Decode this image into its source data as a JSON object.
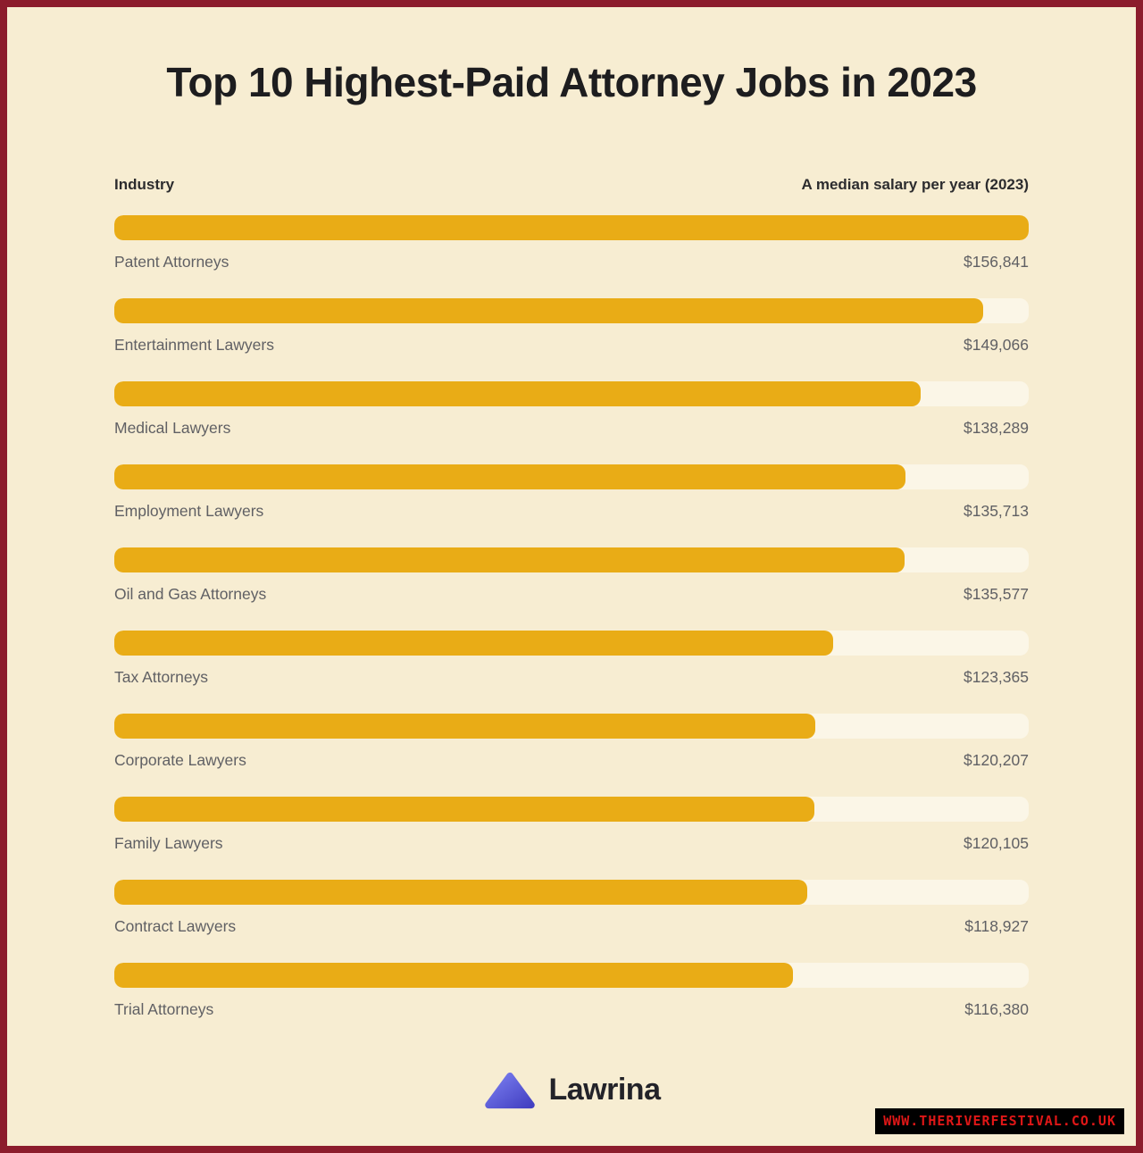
{
  "title": "Top 10 Highest-Paid Attorney Jobs in 2023",
  "chart_header": {
    "left": "Industry",
    "right": "A median salary per year (2023)"
  },
  "chart_data": {
    "type": "bar",
    "orientation": "horizontal",
    "categories": [
      "Patent Attorneys",
      "Entertainment Lawyers",
      "Medical Lawyers",
      "Employment Lawyers",
      "Oil and Gas Attorneys",
      "Tax Attorneys",
      "Corporate Lawyers",
      "Family Lawyers",
      "Contract Lawyers",
      "Trial Attorneys"
    ],
    "values": [
      156841,
      149066,
      138289,
      135713,
      135577,
      123365,
      120207,
      120105,
      118927,
      116380
    ],
    "value_labels": [
      "$156,841",
      "$149,066",
      "$138,289",
      "$135,713",
      "$135,577",
      "$123,365",
      "$120,207",
      "$120,105",
      "$118,927",
      "$116,380"
    ],
    "xlim": [
      0,
      156841
    ],
    "title": "Top 10 Highest-Paid Attorney Jobs in 2023",
    "xlabel": "A median salary per year (2023)",
    "ylabel": "Industry",
    "grid": false,
    "legend": "none"
  },
  "footer": {
    "brand": "Lawrina",
    "logo": "mountain-triangle-icon"
  },
  "watermark": "WWW.THERIVERFESTIVAL.CO.UK",
  "colors": {
    "border": "#8c1c2c",
    "background": "#f7edd2",
    "bar": "#e9ac16",
    "track": "#fbf6e7",
    "title_text": "#1d1d1f",
    "label_text": "#606064",
    "watermark_text": "#e01717",
    "logo_blue_light": "#7b7ff0",
    "logo_blue_dark": "#4340c2"
  }
}
